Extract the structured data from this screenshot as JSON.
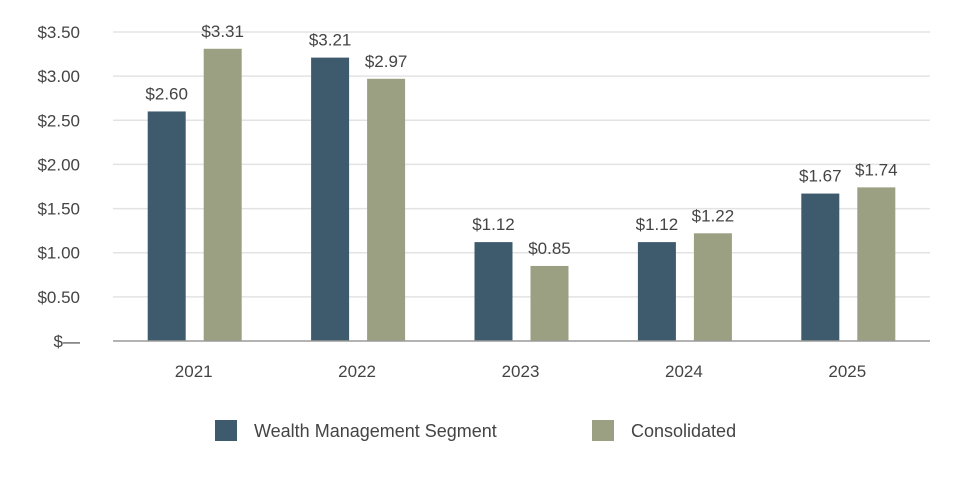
{
  "chart_data": {
    "type": "bar",
    "title": "",
    "xlabel": "",
    "ylabel": "",
    "categories": [
      "2021",
      "2022",
      "2023",
      "2024",
      "2025"
    ],
    "series": [
      {
        "name": "Wealth Management Segment",
        "color": "#3e5a6d",
        "values": [
          2.6,
          3.21,
          1.12,
          1.12,
          1.67
        ],
        "labels": [
          "$2.60",
          "$3.21",
          "$1.12",
          "$1.12",
          "$1.67"
        ]
      },
      {
        "name": "Consolidated",
        "color": "#9ba082",
        "values": [
          3.31,
          2.97,
          0.85,
          1.22,
          1.74
        ],
        "labels": [
          "$3.31",
          "$2.97",
          "$0.85",
          "$1.22",
          "$1.74"
        ]
      }
    ],
    "ylim": [
      0,
      3.5
    ],
    "yticks": [
      0,
      0.5,
      1.0,
      1.5,
      2.0,
      2.5,
      3.0,
      3.5
    ],
    "ytick_labels": [
      "$—",
      "$0.50",
      "$1.00",
      "$1.50",
      "$2.00",
      "$2.50",
      "$3.00",
      "$3.50"
    ],
    "grid": true,
    "legend_position": "bottom"
  }
}
